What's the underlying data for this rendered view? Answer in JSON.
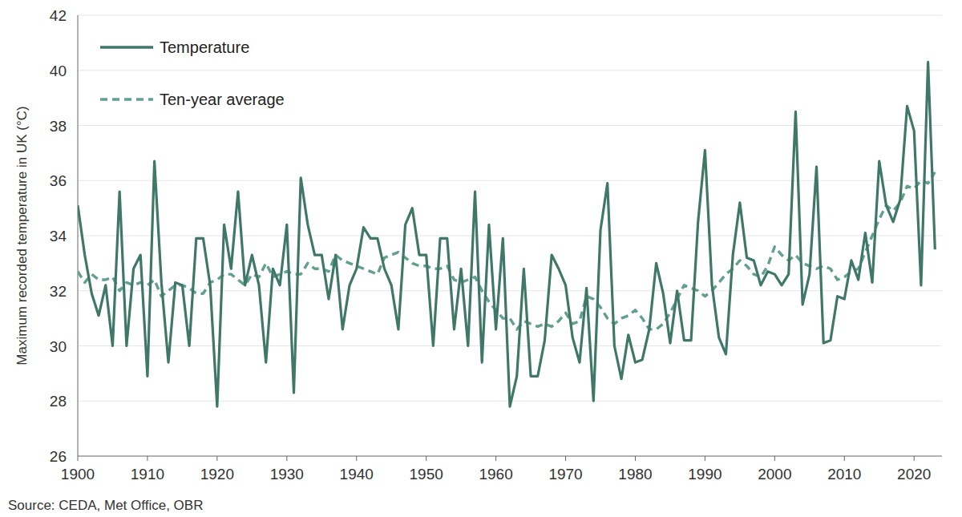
{
  "chart_data": {
    "type": "line",
    "y_label": "Maximum recorded temperature in UK (°C)",
    "source": "Source: CEDA, Met Office, OBR",
    "x": [
      1900,
      1901,
      1902,
      1903,
      1904,
      1905,
      1906,
      1907,
      1908,
      1909,
      1910,
      1911,
      1912,
      1913,
      1914,
      1915,
      1916,
      1917,
      1918,
      1919,
      1920,
      1921,
      1922,
      1923,
      1924,
      1925,
      1926,
      1927,
      1928,
      1929,
      1930,
      1931,
      1932,
      1933,
      1934,
      1935,
      1936,
      1937,
      1938,
      1939,
      1940,
      1941,
      1942,
      1943,
      1944,
      1945,
      1946,
      1947,
      1948,
      1949,
      1950,
      1951,
      1952,
      1953,
      1954,
      1955,
      1956,
      1957,
      1958,
      1959,
      1960,
      1961,
      1962,
      1963,
      1964,
      1965,
      1966,
      1967,
      1968,
      1969,
      1970,
      1971,
      1972,
      1973,
      1974,
      1975,
      1976,
      1977,
      1978,
      1979,
      1980,
      1981,
      1982,
      1983,
      1984,
      1985,
      1986,
      1987,
      1988,
      1989,
      1990,
      1991,
      1992,
      1993,
      1994,
      1995,
      1996,
      1997,
      1998,
      1999,
      2000,
      2001,
      2002,
      2003,
      2004,
      2005,
      2006,
      2007,
      2008,
      2009,
      2010,
      2011,
      2012,
      2013,
      2014,
      2015,
      2016,
      2017,
      2018,
      2019,
      2020,
      2021,
      2022,
      2023
    ],
    "series": [
      {
        "name": "Temperature",
        "color": "#3f7868",
        "line_style": "solid",
        "values": [
          35.1,
          33.3,
          31.9,
          31.1,
          32.2,
          30.0,
          35.6,
          30.0,
          32.8,
          33.3,
          28.9,
          36.7,
          32.3,
          29.4,
          32.3,
          32.2,
          30.0,
          33.9,
          33.9,
          32.2,
          27.8,
          34.4,
          32.8,
          35.6,
          32.2,
          33.3,
          32.2,
          29.4,
          32.8,
          32.2,
          34.4,
          28.3,
          36.1,
          34.4,
          33.3,
          33.3,
          31.7,
          33.3,
          30.6,
          32.2,
          32.8,
          34.3,
          33.9,
          33.9,
          32.8,
          32.2,
          30.6,
          34.4,
          35.0,
          33.3,
          33.3,
          30.0,
          33.9,
          33.9,
          30.6,
          32.8,
          30.0,
          35.6,
          29.4,
          34.4,
          30.6,
          33.9,
          27.8,
          28.9,
          32.8,
          28.9,
          28.9,
          30.2,
          33.3,
          32.8,
          32.2,
          30.3,
          29.4,
          32.1,
          28.0,
          34.2,
          35.9,
          30.0,
          28.8,
          30.4,
          29.4,
          29.5,
          30.6,
          33.0,
          31.9,
          30.1,
          32.0,
          30.2,
          30.2,
          34.5,
          37.1,
          32.2,
          30.3,
          29.7,
          33.3,
          35.2,
          33.2,
          33.1,
          32.2,
          32.7,
          32.6,
          32.2,
          32.6,
          38.5,
          31.5,
          32.6,
          36.5,
          30.1,
          30.2,
          31.8,
          31.7,
          33.1,
          32.4,
          34.1,
          32.3,
          36.7,
          35.1,
          34.5,
          35.3,
          38.7,
          37.8,
          32.2,
          40.3,
          33.5
        ]
      },
      {
        "name": "Ten-year average",
        "color": "#62a08d",
        "line_style": "dashed",
        "values": [
          32.7,
          32.3,
          32.6,
          32.4,
          32.4,
          32.5,
          32.0,
          32.3,
          32.2,
          32.3,
          32.2,
          32.4,
          31.8,
          32.0,
          32.2,
          32.2,
          32.1,
          31.9,
          31.9,
          32.3,
          32.4,
          32.6,
          32.6,
          32.4,
          32.2,
          32.6,
          32.5,
          33.0,
          32.5,
          32.6,
          32.7,
          32.6,
          32.6,
          33.0,
          32.8,
          32.8,
          32.7,
          33.3,
          33.1,
          33.0,
          32.9,
          32.8,
          32.7,
          32.6,
          33.2,
          33.3,
          33.4,
          33.2,
          33.0,
          32.9,
          32.9,
          32.8,
          32.8,
          32.9,
          32.4,
          32.3,
          32.4,
          32.5,
          32.0,
          31.6,
          31.3,
          31.0,
          31.0,
          30.6,
          30.9,
          30.8,
          30.7,
          30.8,
          30.7,
          30.9,
          31.2,
          30.8,
          30.9,
          31.8,
          31.7,
          31.4,
          31.0,
          30.8,
          31.0,
          31.1,
          31.3,
          31.0,
          30.6,
          30.6,
          30.8,
          31.2,
          31.7,
          32.2,
          32.1,
          32.0,
          31.8,
          32.0,
          32.3,
          32.6,
          32.8,
          33.1,
          32.9,
          32.6,
          32.5,
          32.9,
          33.6,
          33.3,
          33.1,
          33.3,
          33.0,
          32.9,
          32.8,
          32.9,
          32.8,
          32.4,
          32.5,
          32.7,
          32.8,
          33.4,
          34.0,
          34.6,
          35.1,
          34.9,
          35.2,
          35.8,
          35.7,
          36.0,
          35.9,
          36.3
        ]
      }
    ],
    "xlim": [
      1900,
      2024
    ],
    "ylim": [
      26,
      42
    ],
    "xticks": [
      1900,
      1910,
      1920,
      1930,
      1940,
      1950,
      1960,
      1970,
      1980,
      1990,
      2000,
      2010,
      2020
    ],
    "yticks": [
      26,
      28,
      30,
      32,
      34,
      36,
      38,
      40,
      42
    ],
    "grid": true,
    "legend": "upper-left"
  }
}
